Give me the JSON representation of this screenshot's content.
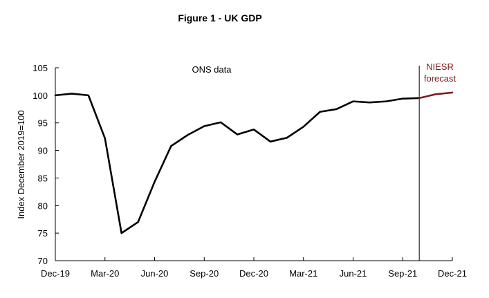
{
  "chart_data": {
    "type": "line",
    "title": "Figure 1 - UK GDP",
    "xlabel": "",
    "ylabel": "Index December 2019=100",
    "ylim": [
      70,
      105
    ],
    "yticks": [
      70,
      75,
      80,
      85,
      90,
      95,
      100,
      105
    ],
    "x_tick_labels": [
      "Dec-19",
      "Mar-20",
      "Jun-20",
      "Sep-20",
      "Dec-20",
      "Mar-21",
      "Jun-21",
      "Sep-21",
      "Dec-21"
    ],
    "months": [
      "Dec-19",
      "Jan-20",
      "Feb-20",
      "Mar-20",
      "Apr-20",
      "May-20",
      "Jun-20",
      "Jul-20",
      "Aug-20",
      "Sep-20",
      "Oct-20",
      "Nov-20",
      "Dec-20",
      "Jan-21",
      "Feb-21",
      "Mar-21",
      "Apr-21",
      "May-21",
      "Jun-21",
      "Jul-21",
      "Aug-21",
      "Sep-21",
      "Oct-21",
      "Nov-21",
      "Dec-21"
    ],
    "series": [
      {
        "name": "ONS data",
        "color": "#000000",
        "start_index": 0,
        "values": [
          100.0,
          100.3,
          100.0,
          92.2,
          75.0,
          77.0,
          84.3,
          90.8,
          92.8,
          94.4,
          95.1,
          92.9,
          93.8,
          91.6,
          92.3,
          94.3,
          97.0,
          97.5,
          98.9,
          98.7,
          98.9,
          99.4,
          99.5
        ]
      },
      {
        "name": "NIESR forecast",
        "color": "#7b1c1c",
        "start_index": 22,
        "values": [
          99.5,
          100.2,
          100.5
        ]
      }
    ],
    "annotations": {
      "ons_label": "ONS data",
      "niesr_label_line1": "NIESR",
      "niesr_label_line2": "forecast"
    },
    "forecast_divider_month_index": 22
  }
}
